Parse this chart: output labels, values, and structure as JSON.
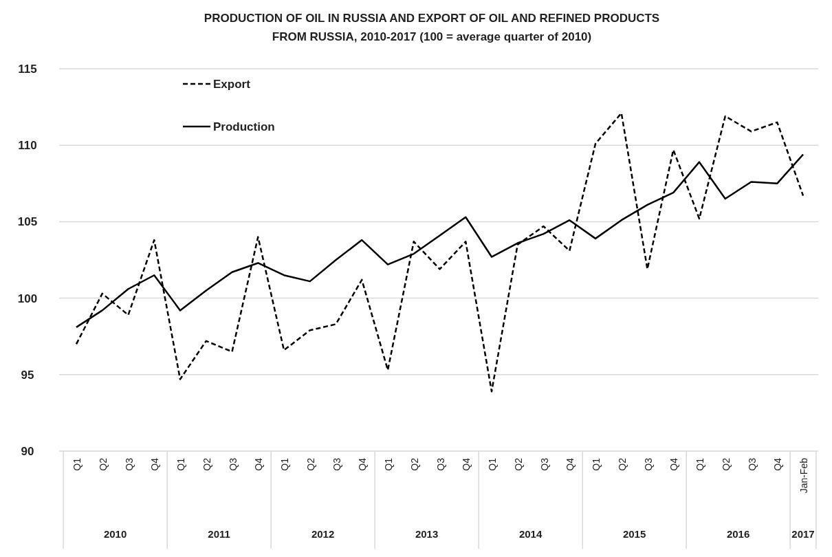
{
  "chart_data": {
    "type": "line",
    "title": "PRODUCTION OF OIL IN RUSSIA AND EXPORT OF OIL AND REFINED PRODUCTS FROM RUSSIA, 2010-2017 (100 = average quarter of 2010)",
    "categories": [
      "Q1",
      "Q2",
      "Q3",
      "Q4",
      "Q1",
      "Q2",
      "Q3",
      "Q4",
      "Q1",
      "Q2",
      "Q3",
      "Q4",
      "Q1",
      "Q2",
      "Q3",
      "Q4",
      "Q1",
      "Q2",
      "Q3",
      "Q4",
      "Q1",
      "Q2",
      "Q3",
      "Q4",
      "Q1",
      "Q2",
      "Q3",
      "Q4",
      "Jan-Feb"
    ],
    "annotations": [
      "2010",
      "2011",
      "2012",
      "2013",
      "2014",
      "2015",
      "2016",
      "2017"
    ],
    "series": [
      {
        "name": "Export",
        "color": "#000000",
        "line_style": "dashed",
        "values": [
          97.0,
          100.3,
          98.9,
          103.8,
          94.7,
          97.2,
          96.5,
          104.0,
          96.6,
          97.9,
          98.3,
          101.2,
          95.3,
          103.7,
          101.9,
          103.7,
          93.9,
          103.5,
          104.7,
          103.1,
          110.1,
          112.1,
          101.9,
          109.7,
          105.2,
          111.9,
          110.9,
          111.5,
          106.7
        ]
      },
      {
        "name": "Production",
        "color": "#000000",
        "line_style": "solid",
        "values": [
          98.1,
          99.2,
          100.6,
          101.5,
          99.2,
          100.5,
          101.7,
          102.3,
          101.5,
          101.1,
          102.5,
          103.8,
          102.2,
          102.9,
          104.1,
          105.3,
          102.7,
          103.6,
          104.2,
          105.1,
          103.9,
          105.1,
          106.1,
          106.9,
          108.9,
          106.5,
          107.6,
          107.5,
          109.4
        ]
      }
    ],
    "ylim": [
      90,
      115
    ],
    "yticks": [
      90,
      95,
      100,
      105,
      110,
      115
    ],
    "grid": "y",
    "legend": "top left",
    "marker": "none"
  }
}
